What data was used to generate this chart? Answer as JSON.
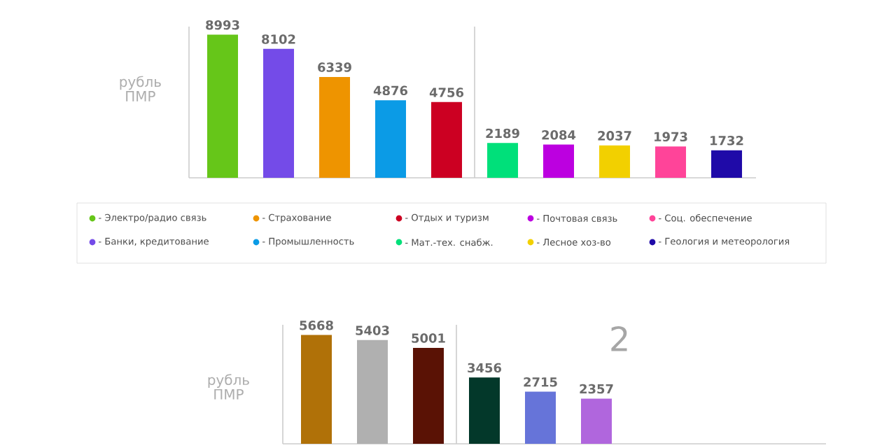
{
  "chart_data": [
    {
      "type": "bar",
      "ylabel": "рубль ПМР",
      "categories": [
        null,
        null,
        null,
        null,
        null,
        null,
        null,
        null,
        null,
        null
      ],
      "ylim": [
        0,
        9500
      ],
      "tick_labels": false,
      "data_labels": true,
      "values": [
        8993,
        8102,
        6339,
        4876,
        4756,
        2189,
        2084,
        2037,
        1973,
        1732
      ],
      "colors": [
        "#66c619",
        "#744be8",
        "#ee9400",
        "#0b9be6",
        "#cc0022",
        "#00e07a",
        "#bc00e0",
        "#f2d000",
        "#ff4499",
        "#1f0aa8"
      ],
      "annotations": [
        "- Электро/радио связь",
        "- Банки, кредитование",
        "- Страхование",
        "- Промышленность",
        "- Отдых и туризм",
        "- Мат.-тех. снабж.",
        "- Почтовая связь",
        "- Лесное хоз-во",
        "- Соц. обеспечение",
        "- Геология и метеорология"
      ]
    },
    {
      "type": "bar",
      "title": "2",
      "ylabel": "рубль ПМР",
      "categories": [
        null,
        null,
        null,
        null,
        null,
        null
      ],
      "ylim": [
        0,
        6200
      ],
      "tick_labels": false,
      "data_labels": true,
      "values": [
        5668,
        5403,
        5001,
        3456,
        2715,
        2357
      ],
      "colors": [
        "#b07108",
        "#b0b0b0",
        "#5a1205",
        "#03382a",
        "#6674d9",
        "#b066dd"
      ]
    }
  ]
}
